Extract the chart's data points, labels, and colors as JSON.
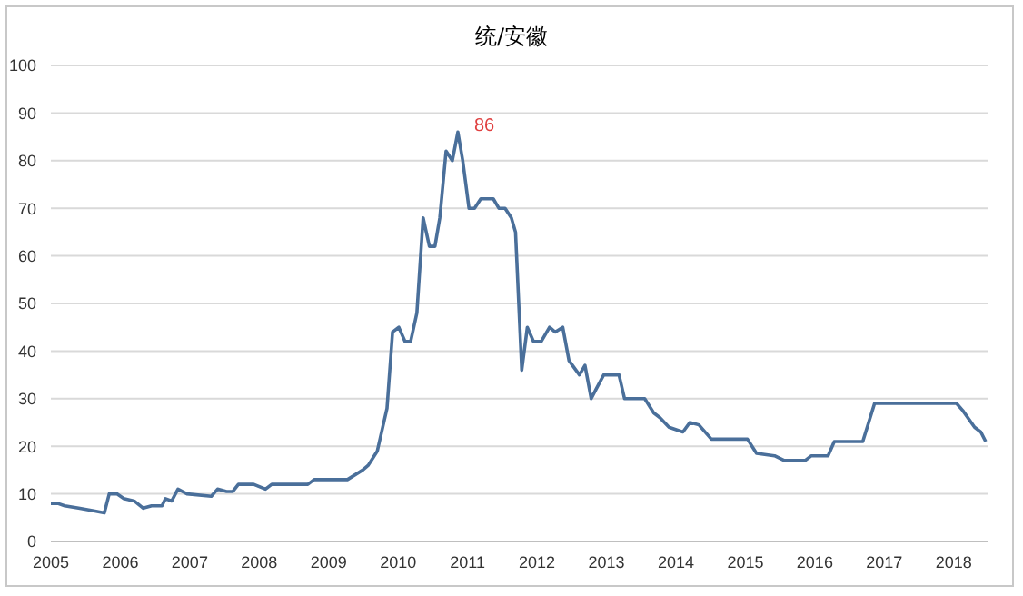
{
  "chart_data": {
    "type": "line",
    "title": "统/安徽",
    "x": [
      2005.0,
      2005.1,
      2005.2,
      2005.4,
      2005.6,
      2005.77,
      2005.84,
      2005.95,
      2006.05,
      2006.2,
      2006.33,
      2006.45,
      2006.6,
      2006.65,
      2006.74,
      2006.83,
      2006.96,
      2007.31,
      2007.4,
      2007.53,
      2007.62,
      2007.7,
      2007.92,
      2008.09,
      2008.18,
      2008.7,
      2008.79,
      2009.27,
      2009.49,
      2009.57,
      2009.7,
      2009.84,
      2009.92,
      2010.01,
      2010.1,
      2010.18,
      2010.27,
      2010.36,
      2010.45,
      2010.53,
      2010.6,
      2010.69,
      2010.78,
      2010.86,
      2010.93,
      2011.02,
      2011.1,
      2011.19,
      2011.37,
      2011.45,
      2011.54,
      2011.63,
      2011.69,
      2011.78,
      2011.86,
      2011.95,
      2012.06,
      2012.18,
      2012.26,
      2012.37,
      2012.46,
      2012.61,
      2012.69,
      2012.78,
      2012.85,
      2012.96,
      2013.18,
      2013.26,
      2013.55,
      2013.68,
      2013.77,
      2013.9,
      2014.1,
      2014.2,
      2014.33,
      2014.51,
      2015.03,
      2015.16,
      2015.42,
      2015.56,
      2015.86,
      2015.95,
      2016.19,
      2016.28,
      2016.69,
      2016.86,
      2018.04,
      2018.13,
      2018.3,
      2018.39,
      2018.46
    ],
    "series": [
      {
        "color": "#4a6f9a",
        "values": [
          8,
          8,
          7.5,
          7,
          6.5,
          6,
          10,
          10,
          9,
          8.5,
          7,
          7.5,
          7.5,
          9,
          8.5,
          11,
          10,
          9.5,
          11,
          10.5,
          10.5,
          12,
          12,
          11,
          12,
          12,
          13,
          13,
          15,
          16,
          19,
          28,
          44,
          45,
          42,
          42,
          48,
          68,
          62,
          62,
          68,
          82,
          80,
          86,
          80,
          70,
          70,
          72,
          72,
          70,
          70,
          68,
          65,
          36,
          45,
          42,
          42,
          45,
          44,
          45,
          38,
          35,
          37,
          30,
          32,
          35,
          35,
          30,
          30,
          27,
          26,
          24,
          23,
          25,
          24.5,
          21.5,
          21.5,
          18.5,
          18,
          17,
          17,
          18,
          18,
          21,
          21,
          29,
          29,
          27.5,
          24,
          23,
          21
        ]
      }
    ],
    "annotations": [
      {
        "text": "86",
        "x": 2010.86,
        "y": 86
      }
    ],
    "xlim": [
      2005,
      2018.5
    ],
    "xticks": [
      2005,
      2006,
      2007,
      2008,
      2009,
      2010,
      2011,
      2012,
      2013,
      2014,
      2015,
      2016,
      2017,
      2018
    ],
    "ylim": [
      0,
      100
    ],
    "yticks": [
      0,
      10,
      20,
      30,
      40,
      50,
      60,
      70,
      80,
      90,
      100
    ],
    "grid": "y",
    "legend": false,
    "marker": "none",
    "line_style": "solid"
  }
}
